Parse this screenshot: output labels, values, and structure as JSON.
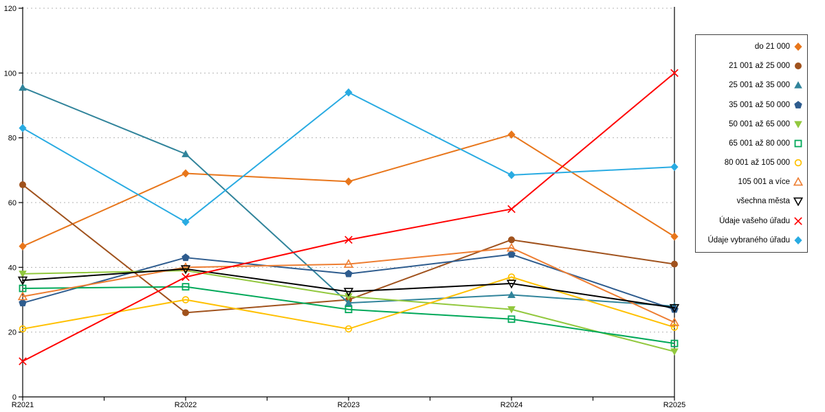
{
  "chart_data": {
    "type": "line",
    "title": "",
    "xlabel": "",
    "ylabel": "",
    "categories": [
      "R2021",
      "R2022",
      "R2023",
      "R2024",
      "R2025"
    ],
    "ylim": [
      0,
      120
    ],
    "yticks": [
      "0",
      "20",
      "40",
      "60",
      "80",
      "100",
      "120"
    ],
    "grid": "dotted-horizontal",
    "legend_position": "right",
    "series": [
      {
        "name": "do 21 000",
        "color": "#E8761B",
        "marker": "diamond",
        "fill": "filled",
        "values": [
          46.5,
          69,
          66.5,
          81,
          49.5
        ]
      },
      {
        "name": "21 001 až 25 000",
        "color": "#A0521D",
        "marker": "circle",
        "fill": "filled",
        "values": [
          65.5,
          26,
          30,
          48.5,
          41
        ]
      },
      {
        "name": "25 001 až 35 000",
        "color": "#31849B",
        "marker": "triangle-up",
        "fill": "filled",
        "values": [
          95.5,
          75,
          29,
          31.5,
          28
        ]
      },
      {
        "name": "35 001 až 50 000",
        "color": "#2E5C8E",
        "marker": "pentagon",
        "fill": "filled",
        "values": [
          29,
          43,
          38,
          44,
          27
        ]
      },
      {
        "name": "50 001 až 65 000",
        "color": "#92C83E",
        "marker": "triangle-down",
        "fill": "filled",
        "values": [
          38,
          39,
          31,
          27,
          14
        ]
      },
      {
        "name": "65 001 až 80 000",
        "color": "#00A859",
        "marker": "square",
        "fill": "open",
        "values": [
          33.5,
          34,
          27,
          24,
          16.5
        ]
      },
      {
        "name": "80 001 až 105 000",
        "color": "#FFC000",
        "marker": "circle",
        "fill": "open",
        "values": [
          21,
          30,
          21,
          37,
          21.5
        ]
      },
      {
        "name": "105 001 a více",
        "color": "#ED7D31",
        "marker": "triangle-up",
        "fill": "open",
        "values": [
          31,
          40,
          41,
          46,
          23
        ]
      },
      {
        "name": "všechna města",
        "color": "#000000",
        "marker": "triangle-down",
        "fill": "open",
        "values": [
          36,
          39.5,
          32.5,
          35,
          27.5
        ]
      },
      {
        "name": "Údaje vašeho úřadu",
        "color": "#FF0000",
        "marker": "x",
        "fill": "open",
        "values": [
          11,
          37,
          48.5,
          58,
          100
        ]
      },
      {
        "name": "Údaje vybraného úřadu",
        "color": "#29ABE2",
        "marker": "diamond",
        "fill": "filled",
        "values": [
          83,
          54,
          94,
          68.5,
          71
        ]
      }
    ]
  }
}
